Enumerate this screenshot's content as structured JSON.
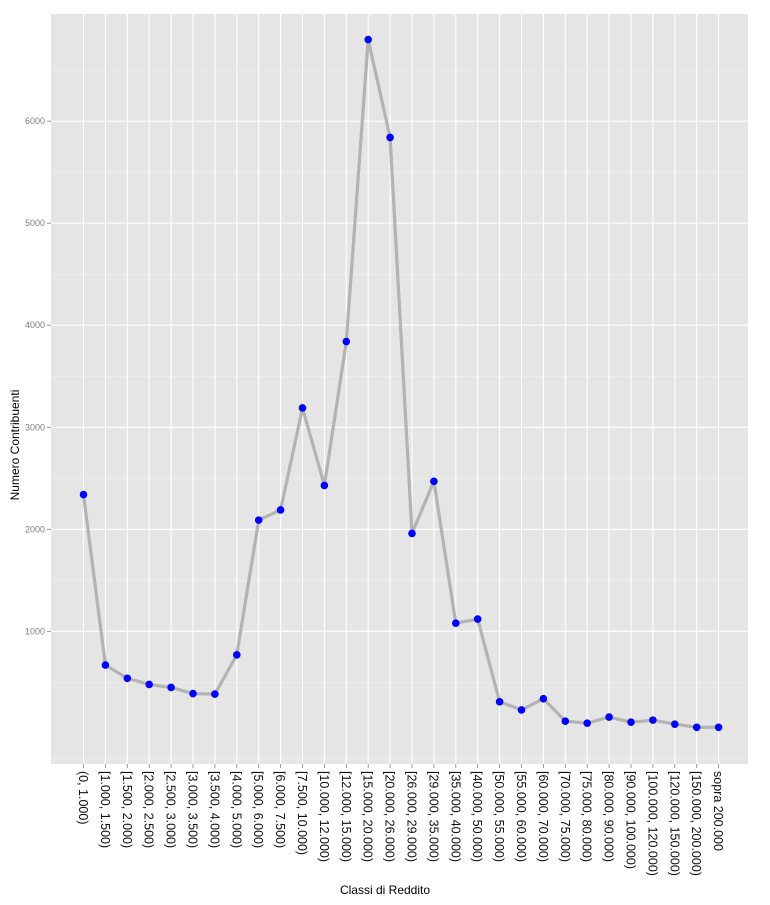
{
  "chart_data": {
    "type": "line",
    "xlabel": "Classi di Reddito",
    "ylabel": "Numero Contribuenti",
    "ylim": [
      -300,
      7050
    ],
    "yticks": [
      1000,
      2000,
      3000,
      4000,
      5000,
      6000
    ],
    "grid": true,
    "categories": [
      "(0, 1.000)",
      "[1.000, 1.500)",
      "[1.500, 2.000)",
      "[2.000, 2.500)",
      "[2.500, 3.000)",
      "[3.000, 3.500)",
      "[3.500, 4.000)",
      "[4.000, 5.000)",
      "[5.000, 6.000)",
      "[6.000, 7.500)",
      "[7.500, 10.000)",
      "[10.000, 12.000)",
      "[12.000, 15.000)",
      "[15.000, 20.000)",
      "[20.000, 26.000)",
      "[26.000, 29.000)",
      "[29.000, 35.000)",
      "[35.000, 40.000)",
      "[40.000, 50.000)",
      "[50.000, 55.000)",
      "[55.000, 60.000)",
      "[60.000, 70.000)",
      "[70.000, 75.000)",
      "[75.000, 80.000)",
      "[80.000, 90.000)",
      "[90.000, 100.000)",
      "[100.000, 120.000)",
      "[120.000, 150.000)",
      "[150.000, 200.000)",
      "sopra 200.000"
    ],
    "values": [
      2340,
      670,
      540,
      480,
      450,
      390,
      385,
      770,
      2090,
      2190,
      3190,
      2430,
      3840,
      6800,
      5840,
      1960,
      2470,
      1080,
      1120,
      310,
      230,
      340,
      120,
      100,
      160,
      110,
      130,
      90,
      60,
      60
    ],
    "colors": {
      "line": "#b3b3b3",
      "point": "#0000ff",
      "panel": "#e5e5e5",
      "grid_major": "#ffffff",
      "grid_minor": "#f2f2f2"
    }
  }
}
